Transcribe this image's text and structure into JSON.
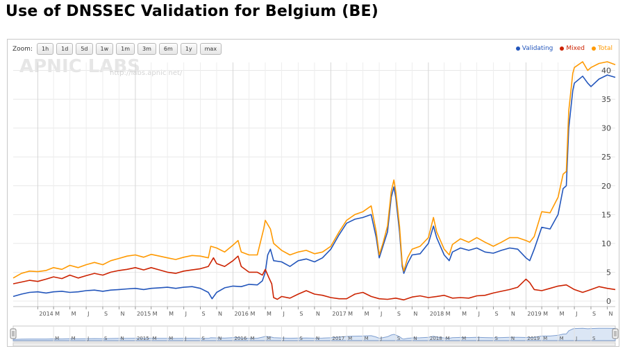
{
  "page": {
    "title": "Use of DNSSEC Validation for Belgium (BE)"
  },
  "zoom": {
    "label": "Zoom:",
    "buttons": [
      "1h",
      "1d",
      "5d",
      "1w",
      "1m",
      "3m",
      "6m",
      "1y",
      "max"
    ]
  },
  "watermark": {
    "logo": "APNIC LABS",
    "url": "http://labs.apnic.net/"
  },
  "legend": [
    {
      "name": "Validating",
      "color": "#2255bb"
    },
    {
      "name": "Mixed",
      "color": "#cc2200"
    },
    {
      "name": "Total",
      "color": "#ff9900"
    }
  ],
  "chart_data": {
    "type": "line",
    "title": "Use of DNSSEC Validation for Belgium (BE)",
    "xlabel": "",
    "ylabel": "",
    "x_range": [
      "2013-10",
      "2019-12"
    ],
    "ylim": [
      0,
      42
    ],
    "y_ticks": [
      0,
      5,
      10,
      15,
      20,
      25,
      30,
      35,
      40
    ],
    "y_tick_labels": [
      "0",
      "5",
      "10",
      "15",
      "20",
      "25",
      "30",
      "35",
      "40"
    ],
    "x_ticks": [
      "2014",
      "M",
      "M",
      "J",
      "S",
      "N",
      "2015",
      "M",
      "M",
      "J",
      "S",
      "N",
      "2016",
      "M",
      "M",
      "J",
      "S",
      "N",
      "2017",
      "M",
      "M",
      "J",
      "S",
      "N",
      "2018",
      "M",
      "M",
      "J",
      "S",
      "N",
      "2019",
      "M",
      "M",
      "J",
      "S",
      "N"
    ],
    "navigator_ticks": [
      "M",
      "M",
      "J",
      "S",
      "N",
      "2015",
      "M",
      "M",
      "J",
      "S",
      "N",
      "2016",
      "M",
      "M",
      "J",
      "S",
      "N",
      "2017",
      "M",
      "M",
      "J",
      "S",
      "N",
      "2018",
      "M",
      "M",
      "J",
      "S",
      "N",
      "2019",
      "M",
      "M",
      "J",
      "S"
    ],
    "grid": true,
    "legend_position": "top-right",
    "series": [
      {
        "name": "Validating",
        "color": "#2255bb",
        "points": [
          [
            "2013-10",
            0.8
          ],
          [
            "2013-11",
            1.2
          ],
          [
            "2013-12",
            1.5
          ],
          [
            "2014-01",
            1.6
          ],
          [
            "2014-02",
            1.4
          ],
          [
            "2014-03",
            1.6
          ],
          [
            "2014-04",
            1.7
          ],
          [
            "2014-05",
            1.5
          ],
          [
            "2014-06",
            1.6
          ],
          [
            "2014-07",
            1.8
          ],
          [
            "2014-08",
            1.9
          ],
          [
            "2014-09",
            1.7
          ],
          [
            "2014-10",
            1.9
          ],
          [
            "2014-11",
            2.0
          ],
          [
            "2014-12",
            2.1
          ],
          [
            "2015-01",
            2.2
          ],
          [
            "2015-02",
            2.0
          ],
          [
            "2015-03",
            2.2
          ],
          [
            "2015-04",
            2.3
          ],
          [
            "2015-05",
            2.4
          ],
          [
            "2015-06",
            2.2
          ],
          [
            "2015-07",
            2.4
          ],
          [
            "2015-08",
            2.5
          ],
          [
            "2015-09",
            2.2
          ],
          [
            "2015-10",
            1.5
          ],
          [
            "2015-10-15",
            0.4
          ],
          [
            "2015-11",
            1.5
          ],
          [
            "2015-12",
            2.3
          ],
          [
            "2016-01",
            2.6
          ],
          [
            "2016-02",
            2.5
          ],
          [
            "2016-03",
            2.9
          ],
          [
            "2016-04",
            2.8
          ],
          [
            "2016-04-20",
            3.5
          ],
          [
            "2016-05",
            5.0
          ],
          [
            "2016-05-10",
            8.0
          ],
          [
            "2016-05-20",
            9.0
          ],
          [
            "2016-06",
            7.0
          ],
          [
            "2016-07",
            6.8
          ],
          [
            "2016-08",
            6.0
          ],
          [
            "2016-09",
            7.0
          ],
          [
            "2016-10",
            7.3
          ],
          [
            "2016-11",
            6.8
          ],
          [
            "2016-12",
            7.5
          ],
          [
            "2017-01",
            9.0
          ],
          [
            "2017-02",
            11.5
          ],
          [
            "2017-03",
            13.5
          ],
          [
            "2017-04",
            14.2
          ],
          [
            "2017-05",
            14.5
          ],
          [
            "2017-06",
            15.0
          ],
          [
            "2017-06-20",
            11.0
          ],
          [
            "2017-07",
            7.5
          ],
          [
            "2017-07-15",
            9.5
          ],
          [
            "2017-08",
            12.0
          ],
          [
            "2017-08-15",
            18.0
          ],
          [
            "2017-08-25",
            19.8
          ],
          [
            "2017-09",
            18.0
          ],
          [
            "2017-09-15",
            12.0
          ],
          [
            "2017-09-25",
            6.0
          ],
          [
            "2017-10",
            4.8
          ],
          [
            "2017-10-15",
            6.5
          ],
          [
            "2017-11",
            8.0
          ],
          [
            "2017-12",
            8.2
          ],
          [
            "2018-01",
            10.0
          ],
          [
            "2018-01-20",
            13.0
          ],
          [
            "2018-02",
            11.0
          ],
          [
            "2018-03",
            8.0
          ],
          [
            "2018-03-20",
            7.0
          ],
          [
            "2018-04",
            8.5
          ],
          [
            "2018-05",
            9.2
          ],
          [
            "2018-06",
            8.8
          ],
          [
            "2018-07",
            9.2
          ],
          [
            "2018-08",
            8.5
          ],
          [
            "2018-09",
            8.3
          ],
          [
            "2018-10",
            8.8
          ],
          [
            "2018-11",
            9.2
          ],
          [
            "2018-12",
            9.0
          ],
          [
            "2019-01",
            7.5
          ],
          [
            "2019-01-15",
            7.0
          ],
          [
            "2019-02",
            9.0
          ],
          [
            "2019-03",
            12.8
          ],
          [
            "2019-04",
            12.5
          ],
          [
            "2019-05",
            15.0
          ],
          [
            "2019-05-20",
            19.5
          ],
          [
            "2019-06",
            20.0
          ],
          [
            "2019-06-10",
            30.0
          ],
          [
            "2019-06-25",
            36.5
          ],
          [
            "2019-07",
            37.8
          ],
          [
            "2019-08",
            39.0
          ],
          [
            "2019-08-20",
            37.8
          ],
          [
            "2019-09",
            37.2
          ],
          [
            "2019-10",
            38.5
          ],
          [
            "2019-11",
            39.2
          ],
          [
            "2019-12",
            38.8
          ]
        ]
      },
      {
        "name": "Mixed",
        "color": "#cc2200",
        "points": [
          [
            "2013-10",
            3.0
          ],
          [
            "2013-11",
            3.3
          ],
          [
            "2013-12",
            3.6
          ],
          [
            "2014-01",
            3.4
          ],
          [
            "2014-02",
            3.8
          ],
          [
            "2014-03",
            4.2
          ],
          [
            "2014-04",
            3.9
          ],
          [
            "2014-05",
            4.5
          ],
          [
            "2014-06",
            4.0
          ],
          [
            "2014-07",
            4.4
          ],
          [
            "2014-08",
            4.8
          ],
          [
            "2014-09",
            4.5
          ],
          [
            "2014-10",
            5.0
          ],
          [
            "2014-11",
            5.3
          ],
          [
            "2014-12",
            5.5
          ],
          [
            "2015-01",
            5.8
          ],
          [
            "2015-02",
            5.4
          ],
          [
            "2015-03",
            5.8
          ],
          [
            "2015-04",
            5.4
          ],
          [
            "2015-05",
            5.0
          ],
          [
            "2015-06",
            4.8
          ],
          [
            "2015-07",
            5.2
          ],
          [
            "2015-08",
            5.4
          ],
          [
            "2015-09",
            5.6
          ],
          [
            "2015-10",
            6.0
          ],
          [
            "2015-10-20",
            7.5
          ],
          [
            "2015-11",
            6.5
          ],
          [
            "2015-12",
            6.0
          ],
          [
            "2016-01",
            7.0
          ],
          [
            "2016-01-20",
            7.8
          ],
          [
            "2016-02",
            6.0
          ],
          [
            "2016-03",
            5.0
          ],
          [
            "2016-04",
            5.0
          ],
          [
            "2016-04-20",
            4.5
          ],
          [
            "2016-05",
            5.5
          ],
          [
            "2016-05-15",
            4.0
          ],
          [
            "2016-05-25",
            3.0
          ],
          [
            "2016-06",
            0.6
          ],
          [
            "2016-06-15",
            0.3
          ],
          [
            "2016-07",
            0.8
          ],
          [
            "2016-08",
            0.5
          ],
          [
            "2016-09",
            1.2
          ],
          [
            "2016-10",
            1.8
          ],
          [
            "2016-11",
            1.2
          ],
          [
            "2016-12",
            1.0
          ],
          [
            "2017-01",
            0.6
          ],
          [
            "2017-02",
            0.4
          ],
          [
            "2017-03",
            0.4
          ],
          [
            "2017-04",
            1.2
          ],
          [
            "2017-05",
            1.5
          ],
          [
            "2017-06",
            0.8
          ],
          [
            "2017-07",
            0.4
          ],
          [
            "2017-08",
            0.3
          ],
          [
            "2017-09",
            0.5
          ],
          [
            "2017-10",
            0.2
          ],
          [
            "2017-11",
            0.7
          ],
          [
            "2017-12",
            0.9
          ],
          [
            "2018-01",
            0.6
          ],
          [
            "2018-02",
            0.8
          ],
          [
            "2018-03",
            1.0
          ],
          [
            "2018-04",
            0.5
          ],
          [
            "2018-05",
            0.6
          ],
          [
            "2018-06",
            0.5
          ],
          [
            "2018-07",
            0.9
          ],
          [
            "2018-08",
            1.0
          ],
          [
            "2018-09",
            1.4
          ],
          [
            "2018-10",
            1.7
          ],
          [
            "2018-11",
            2.0
          ],
          [
            "2018-12",
            2.4
          ],
          [
            "2019-01",
            3.8
          ],
          [
            "2019-01-15",
            3.2
          ],
          [
            "2019-02",
            2.0
          ],
          [
            "2019-03",
            1.8
          ],
          [
            "2019-04",
            2.2
          ],
          [
            "2019-05",
            2.6
          ],
          [
            "2019-06",
            2.8
          ],
          [
            "2019-07",
            2.0
          ],
          [
            "2019-08",
            1.5
          ],
          [
            "2019-09",
            2.0
          ],
          [
            "2019-10",
            2.5
          ],
          [
            "2019-11",
            2.2
          ],
          [
            "2019-12",
            2.0
          ]
        ]
      },
      {
        "name": "Total",
        "color": "#ff9900",
        "points": [
          [
            "2013-10",
            4.0
          ],
          [
            "2013-11",
            4.8
          ],
          [
            "2013-12",
            5.2
          ],
          [
            "2014-01",
            5.1
          ],
          [
            "2014-02",
            5.3
          ],
          [
            "2014-03",
            5.8
          ],
          [
            "2014-04",
            5.5
          ],
          [
            "2014-05",
            6.2
          ],
          [
            "2014-06",
            5.8
          ],
          [
            "2014-07",
            6.3
          ],
          [
            "2014-08",
            6.7
          ],
          [
            "2014-09",
            6.3
          ],
          [
            "2014-10",
            7.0
          ],
          [
            "2014-11",
            7.4
          ],
          [
            "2014-12",
            7.8
          ],
          [
            "2015-01",
            8.0
          ],
          [
            "2015-02",
            7.6
          ],
          [
            "2015-03",
            8.1
          ],
          [
            "2015-04",
            7.8
          ],
          [
            "2015-05",
            7.5
          ],
          [
            "2015-06",
            7.2
          ],
          [
            "2015-07",
            7.6
          ],
          [
            "2015-08",
            7.9
          ],
          [
            "2015-09",
            7.8
          ],
          [
            "2015-10",
            7.5
          ],
          [
            "2015-10-10",
            9.5
          ],
          [
            "2015-11",
            9.2
          ],
          [
            "2015-12",
            8.5
          ],
          [
            "2016-01",
            9.7
          ],
          [
            "2016-01-20",
            10.5
          ],
          [
            "2016-02",
            8.5
          ],
          [
            "2016-03",
            8.0
          ],
          [
            "2016-04",
            8.0
          ],
          [
            "2016-04-25",
            12.5
          ],
          [
            "2016-05",
            14.0
          ],
          [
            "2016-05-20",
            12.5
          ],
          [
            "2016-06",
            10.0
          ],
          [
            "2016-07",
            8.8
          ],
          [
            "2016-08",
            8.0
          ],
          [
            "2016-09",
            8.5
          ],
          [
            "2016-10",
            8.8
          ],
          [
            "2016-11",
            8.2
          ],
          [
            "2016-12",
            8.5
          ],
          [
            "2017-01",
            9.5
          ],
          [
            "2017-02",
            12.0
          ],
          [
            "2017-03",
            14.0
          ],
          [
            "2017-04",
            15.0
          ],
          [
            "2017-05",
            15.5
          ],
          [
            "2017-06",
            16.5
          ],
          [
            "2017-06-20",
            12.0
          ],
          [
            "2017-07",
            8.0
          ],
          [
            "2017-07-15",
            10.0
          ],
          [
            "2017-08",
            13.0
          ],
          [
            "2017-08-15",
            19.0
          ],
          [
            "2017-08-25",
            21.0
          ],
          [
            "2017-09",
            19.0
          ],
          [
            "2017-09-15",
            13.0
          ],
          [
            "2017-09-25",
            6.5
          ],
          [
            "2017-10",
            5.2
          ],
          [
            "2017-10-15",
            7.5
          ],
          [
            "2017-11",
            9.0
          ],
          [
            "2017-12",
            9.5
          ],
          [
            "2018-01",
            11.0
          ],
          [
            "2018-01-20",
            14.5
          ],
          [
            "2018-02",
            12.0
          ],
          [
            "2018-03",
            9.0
          ],
          [
            "2018-03-20",
            8.0
          ],
          [
            "2018-04",
            9.8
          ],
          [
            "2018-05",
            10.8
          ],
          [
            "2018-06",
            10.2
          ],
          [
            "2018-07",
            11.0
          ],
          [
            "2018-08",
            10.2
          ],
          [
            "2018-09",
            9.5
          ],
          [
            "2018-10",
            10.2
          ],
          [
            "2018-11",
            11.0
          ],
          [
            "2018-12",
            11.0
          ],
          [
            "2019-01",
            10.5
          ],
          [
            "2019-01-15",
            10.2
          ],
          [
            "2019-02",
            11.2
          ],
          [
            "2019-03",
            15.5
          ],
          [
            "2019-04",
            15.3
          ],
          [
            "2019-05",
            18.0
          ],
          [
            "2019-05-20",
            22.0
          ],
          [
            "2019-06",
            22.5
          ],
          [
            "2019-06-10",
            33.0
          ],
          [
            "2019-06-25",
            39.5
          ],
          [
            "2019-07",
            40.5
          ],
          [
            "2019-08",
            41.5
          ],
          [
            "2019-08-20",
            40.0
          ],
          [
            "2019-09",
            40.5
          ],
          [
            "2019-10",
            41.2
          ],
          [
            "2019-11",
            41.5
          ],
          [
            "2019-12",
            41.0
          ]
        ]
      }
    ]
  }
}
